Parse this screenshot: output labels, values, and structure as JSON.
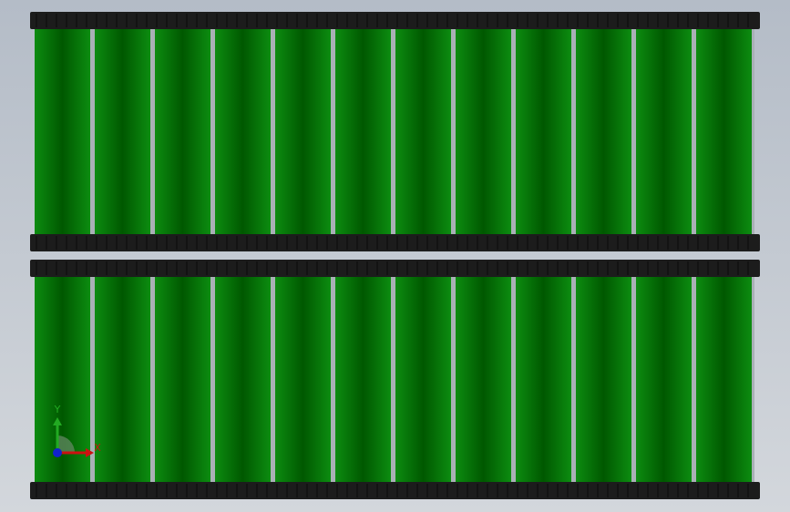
{
  "triad": {
    "y_label": "Y",
    "x_label": "X"
  }
}
